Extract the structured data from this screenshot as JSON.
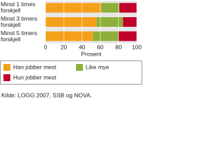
{
  "chart_data": {
    "type": "stacked-bar-horizontal",
    "categories": [
      "Minst 1 times forskjell",
      "Minst 3 timers forskjell",
      "Minst 5 timers forskjell"
    ],
    "series": [
      {
        "name": "Han jobber mest",
        "color": "#f5a01a",
        "values": [
          61,
          56,
          52
        ]
      },
      {
        "name": "Like mye",
        "color": "#8db03a",
        "values": [
          20,
          29,
          28
        ]
      },
      {
        "name": "Hun jobber mest",
        "color": "#c0002a",
        "values": [
          19,
          15,
          20
        ]
      }
    ],
    "xlim": [
      0,
      100
    ],
    "xticks": [
      0,
      20,
      40,
      60,
      80,
      100
    ],
    "xlabel": "Prosent",
    "grid": true,
    "source": "Kilde: LOGG 2007, SSB og NOVA."
  }
}
